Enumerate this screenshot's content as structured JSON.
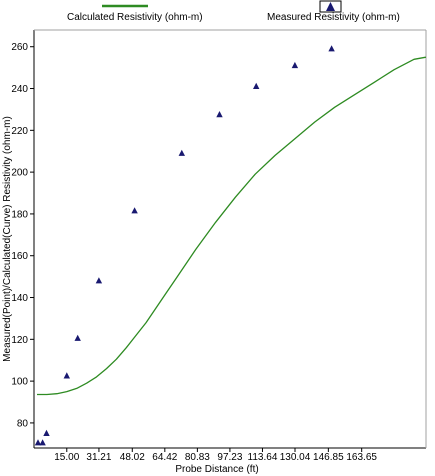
{
  "chart_data": {
    "type": "scatter",
    "xlabel": "Probe Distance (ft)",
    "ylabel": "Measured(Point)/Calculated(Curve) Resistivity (ohm-m)",
    "xlim": [
      -1.52,
      196.07
    ],
    "ylim": [
      68,
      268
    ],
    "x_ticks": [
      15.0,
      31.21,
      48.02,
      64.42,
      80.83,
      97.23,
      113.64,
      130.04,
      146.85,
      163.65
    ],
    "x_tick_labels": [
      "15.00",
      "31.21",
      "48.02",
      "64.42",
      "80.83",
      "97.23",
      "113.64",
      "130.04",
      "146.85",
      "163.65"
    ],
    "y_ticks": [
      80,
      100,
      120,
      140,
      160,
      180,
      200,
      220,
      240,
      260
    ],
    "y_tick_labels": [
      "80",
      "100",
      "120",
      "140",
      "160",
      "180",
      "200",
      "220",
      "240",
      "260"
    ],
    "grid": false,
    "legend_position": "top",
    "legend": [
      {
        "label": "Calculated Resistivity (ohm-m)",
        "kind": "line",
        "color": "#2E8B22"
      },
      {
        "label": "Measured Resistivity (ohm-m)",
        "kind": "marker",
        "color": "#191970"
      }
    ],
    "series": [
      {
        "name": "Calculated Resistivity (ohm-m)",
        "kind": "line",
        "color": "#2E8B22",
        "x": [
          0,
          5,
          10,
          15,
          20,
          25,
          30,
          35,
          40,
          45,
          50,
          55,
          60,
          65,
          70,
          80,
          90,
          100,
          110,
          120,
          130,
          140,
          150,
          160,
          170,
          180,
          190,
          196
        ],
        "y": [
          93.6,
          93.6,
          94,
          95,
          96.5,
          99,
          102,
          106,
          110.5,
          116,
          122,
          128,
          135,
          142,
          149,
          163,
          176,
          188,
          199,
          208,
          216,
          224,
          231,
          237,
          243,
          249,
          254,
          255
        ]
      },
      {
        "name": "Measured Resistivity (ohm-m)",
        "kind": "marker",
        "color": "#191970",
        "x": [
          0.5,
          2.8,
          4.8,
          15.0,
          20.5,
          31.2,
          49.2,
          73.0,
          92.0,
          110.5,
          130.0,
          148.5
        ],
        "y": [
          70.5,
          70.5,
          75,
          102.5,
          120.5,
          148,
          181.5,
          209,
          227.5,
          241,
          251,
          259
        ]
      }
    ]
  }
}
